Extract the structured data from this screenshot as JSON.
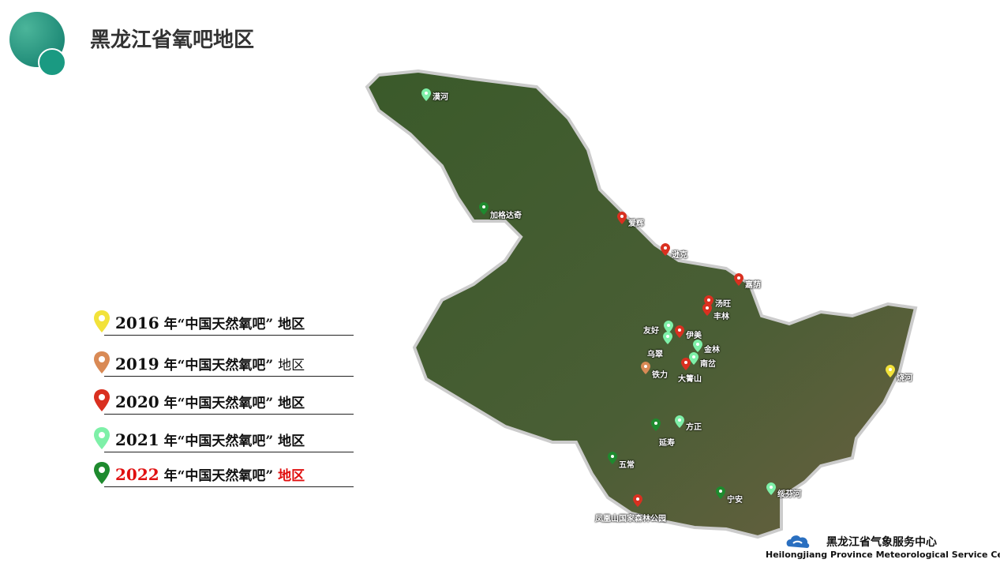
{
  "header": {
    "title": "黑龙江省氧吧地区"
  },
  "legend": [
    {
      "year": "2016",
      "text": "年“中国天然氧吧”",
      "suffix": "地区",
      "color": "#f2e23a",
      "year_color": "#111",
      "suffix_color": "#111"
    },
    {
      "year": "2019",
      "text": "年“中国天然氧吧”",
      "suffix": "地区",
      "color": "#d98a55",
      "year_color": "#111",
      "suffix_color": "#111"
    },
    {
      "year": "2020",
      "text": "年“中国天然氧吧”",
      "suffix": "地区",
      "color": "#d93020",
      "year_color": "#111",
      "suffix_color": "#111"
    },
    {
      "year": "2021",
      "text": "年“中国天然氧吧”",
      "suffix": "地区",
      "color": "#7ef0a8",
      "year_color": "#111",
      "suffix_color": "#111"
    },
    {
      "year": "2022",
      "text": "年“中国天然氧吧”",
      "suffix": "地区",
      "color": "#1e8a2e",
      "year_color": "#e01010",
      "suffix_color": "#e01010"
    }
  ],
  "markers": [
    {
      "name": "漠河",
      "year": "2021"
    },
    {
      "name": "加格达奇",
      "year": "2022"
    },
    {
      "name": "爱辉",
      "year": "2020"
    },
    {
      "name": "逊克",
      "year": "2020"
    },
    {
      "name": "嘉荫",
      "year": "2020"
    },
    {
      "name": "汤旺",
      "year": "2020"
    },
    {
      "name": "丰林",
      "year": "2020"
    },
    {
      "name": "友好",
      "year": "2021"
    },
    {
      "name": "伊美",
      "year": "2020"
    },
    {
      "name": "乌翠",
      "year": "2021"
    },
    {
      "name": "金林",
      "year": "2021"
    },
    {
      "name": "南岔",
      "year": "2021"
    },
    {
      "name": "大箐山",
      "year": "2020"
    },
    {
      "name": "铁力",
      "year": "2019"
    },
    {
      "name": "饶河",
      "year": "2016"
    },
    {
      "name": "方正",
      "year": "2021"
    },
    {
      "name": "延寿",
      "year": "2022"
    },
    {
      "name": "五常",
      "year": "2022"
    },
    {
      "name": "凤凰山国家森林公园",
      "year": "2020"
    },
    {
      "name": "宁安",
      "year": "2022"
    },
    {
      "name": "绥芬河",
      "year": "2021"
    }
  ],
  "footer": {
    "org_cn": "黑龙江省气象服务中心",
    "org_en": "Heilongjiang Province Meteorological Service Center"
  }
}
